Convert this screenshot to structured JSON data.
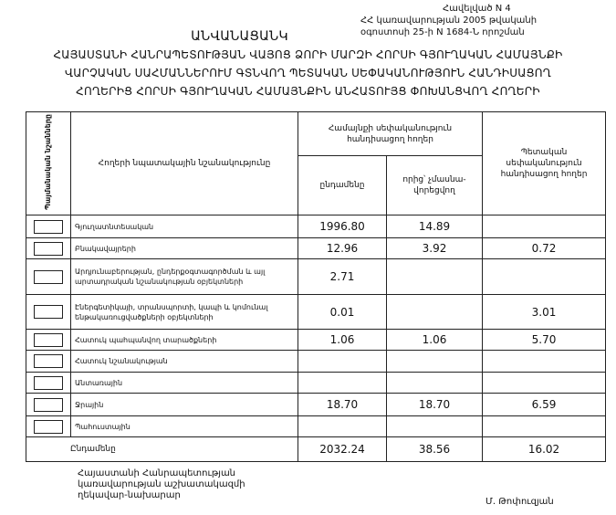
{
  "annex": {
    "line1": "Հավելված N 4",
    "line2": "ՀՀ կառավարության 2005 թվականի",
    "line3": "օգոստոսի 25-ի N 1684-Ն որոշման"
  },
  "title": {
    "main": "ԱՆՎԱՆԱՑԱՆԿ",
    "line1": "ՀԱՅԱՍՏԱՆԻ ՀԱՆՐԱՊԵՏՈՒԹՅԱՆ ՎԱՅՈՑ ՁՈՐԻ ՄԱՐԶԻ ՀՈՐՍԻ ԳՅՈՒՂԱԿԱՆ ՀԱՄԱՅՆՔԻ",
    "line2": "ՎԱՐՉԱԿԱՆ ՍԱՀՄԱՆՆԵՐՈՒՄ ԳՏՆՎՈՂ ՊԵՏԱԿԱՆ ՍԵՓԱԿԱՆՈՒԹՅՈՒՆ ՀԱՆԴԻՍԱՑՈՂ",
    "line3": "ՀՈՂԵՐԻՑ ՀՈՐՍԻ ԳՅՈՒՂԱԿԱՆ ՀԱՄԱՅՆՔԻՆ ԱՆՀԱՏՈՒՅՑ ՓՈԽԱՆՑՎՈՂ ՀՈՂԵՐԻ"
  },
  "table": {
    "headers": {
      "symbols": "Պայմանական նշանները",
      "purpose": "Հողերի նպատակային նշանակությունը",
      "community": "Համայնքի սեփականություն հանդիսացող հողեր",
      "total": "ընդամենը",
      "non_privatized": "որից՝ չմասնա-վորեցվող",
      "state": "Պետական սեփականություն հանդիսացող հողեր"
    },
    "rows": [
      {
        "label": "Գյուղատնտեսական",
        "total": "1996.80",
        "non_privatized": "14.89",
        "state": ""
      },
      {
        "label": "Բնակավայրերի",
        "total": "12.96",
        "non_privatized": "3.92",
        "state": "0.72"
      },
      {
        "label": "Արդյունաբերության, ընդերքօգտագործման և այլ արտադրական նշանակության օբյեկտների",
        "total": "2.71",
        "non_privatized": "",
        "state": ""
      },
      {
        "label": "Էներգետիկայի, տրանսպորտի, կապի և կոմունալ ենթակառուցվածքների օբյեկտների",
        "total": "0.01",
        "non_privatized": "",
        "state": "3.01"
      },
      {
        "label": "Հատուկ պահպանվող տարածքների",
        "total": "1.06",
        "non_privatized": "1.06",
        "state": "5.70"
      },
      {
        "label": "Հատուկ նշանակության",
        "total": "",
        "non_privatized": "",
        "state": ""
      },
      {
        "label": "Անտառային",
        "total": "",
        "non_privatized": "",
        "state": ""
      },
      {
        "label": "Ջրային",
        "total": "18.70",
        "non_privatized": "18.70",
        "state": "6.59"
      },
      {
        "label": "Պահուստային",
        "total": "",
        "non_privatized": "",
        "state": ""
      }
    ],
    "summary": {
      "label": "Ընդամենը",
      "total": "2032.24",
      "non_privatized": "38.56",
      "state": "16.02"
    }
  },
  "footer": {
    "line1": "Հայաստանի Հանրապետության",
    "line2": "կառավարության աշխատակազմի",
    "line3": "ղեկավար-նախարար",
    "signatory": "Մ. Թոփուզյան"
  }
}
